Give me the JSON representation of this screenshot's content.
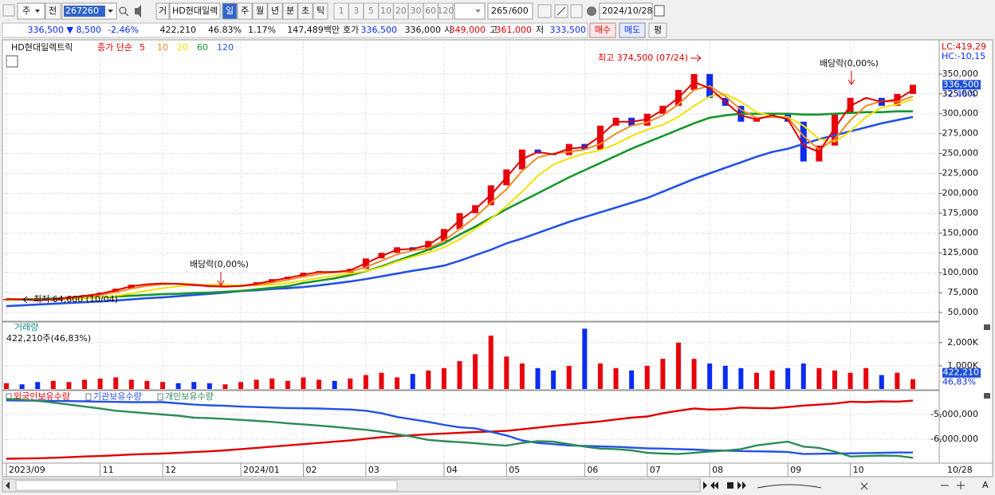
{
  "toolbar": {
    "market": "주",
    "scope": "전",
    "code": "267260",
    "tag": "거",
    "name": "HD현대일렉",
    "periods": [
      "일",
      "주",
      "월",
      "년",
      "분",
      "초",
      "틱"
    ],
    "intervals": [
      "1",
      "3",
      "5",
      "10",
      "20",
      "30",
      "60",
      "120"
    ],
    "count": "265",
    "max": "/600",
    "date": "2024/10/28"
  },
  "info_bar": {
    "price": "336,500 ▼",
    "change": "8,500",
    "change_pct": "-2.46%",
    "volume": "422,210",
    "volume_ratio": "46.83%",
    "turnover_pct": "1.17%",
    "amount": "147,489백만",
    "ask_label": "호가",
    "ask": "336,500",
    "bid": "336,000",
    "open_label": "시",
    "open": "349,000",
    "high_label": "고",
    "high": "361,000",
    "low_label": "저",
    "low": "333,500",
    "buy": "매수",
    "sell": "매도",
    "avg": "평"
  },
  "chart_data": [
    {
      "type": "candlestick",
      "title": "HD현대일렉트릭",
      "legend_title": "종가 단순",
      "up_color": "#e8000b",
      "down_color": "#0a2cf0",
      "close": [
        67000,
        66000,
        64600,
        68000,
        70000,
        72000,
        75000,
        80000,
        85000,
        86000,
        87000,
        85000,
        84000,
        82000,
        83000,
        84000,
        88000,
        92000,
        95000,
        100000,
        102000,
        100000,
        105000,
        118000,
        125000,
        132000,
        128000,
        140000,
        155000,
        175000,
        185000,
        210000,
        230000,
        255000,
        250000,
        248000,
        262000,
        255000,
        285000,
        295000,
        285000,
        300000,
        310000,
        330000,
        350000,
        320000,
        310000,
        290000,
        295000,
        300000,
        290000,
        240000,
        260000,
        300000,
        320000,
        320000,
        310000,
        325000,
        336500
      ],
      "series": [
        {
          "name": "5",
          "color": "#e00000",
          "values": [
            67000,
            66500,
            65500,
            66500,
            69000,
            71000,
            73500,
            78000,
            83000,
            85500,
            86500,
            86000,
            84500,
            83000,
            82500,
            83500,
            86000,
            90000,
            93500,
            97500,
            101000,
            101000,
            103000,
            112000,
            121000,
            129000,
            130000,
            135000,
            148000,
            166000,
            180000,
            198000,
            220000,
            243000,
            252000,
            249000,
            256000,
            258000,
            272000,
            290000,
            290000,
            293000,
            305000,
            320000,
            340000,
            332000,
            315000,
            298000,
            293000,
            298000,
            293000,
            260000,
            252000,
            282000,
            310000,
            320000,
            315000,
            318000,
            330000
          ]
        },
        {
          "name": "10",
          "color": "#f08a24",
          "values": [
            67000,
            66800,
            66000,
            66200,
            67500,
            69500,
            72000,
            75500,
            80000,
            83500,
            85500,
            86200,
            85500,
            84000,
            83000,
            83000,
            84500,
            87500,
            91000,
            95000,
            98500,
            100500,
            101500,
            107000,
            115000,
            123000,
            128000,
            131000,
            140000,
            155000,
            170000,
            188000,
            205000,
            228000,
            245000,
            250000,
            252000,
            255000,
            262000,
            275000,
            285000,
            289000,
            298000,
            312000,
            330000,
            335000,
            322000,
            305000,
            295000,
            296000,
            295000,
            272000,
            255000,
            268000,
            292000,
            310000,
            316000,
            315000,
            322000
          ]
        },
        {
          "name": "20",
          "color": "#f2e200",
          "values": [
            66500,
            66500,
            66300,
            66000,
            66500,
            67500,
            69000,
            71000,
            74000,
            77500,
            80500,
            83000,
            84500,
            85000,
            84500,
            84000,
            84000,
            85000,
            87000,
            90000,
            93500,
            96500,
            99000,
            102000,
            107000,
            114000,
            120000,
            125000,
            132000,
            142000,
            155000,
            168000,
            184000,
            202000,
            222000,
            236000,
            244000,
            250000,
            254000,
            262000,
            272000,
            280000,
            286000,
            296000,
            310000,
            322000,
            325000,
            315000,
            302000,
            297000,
            296000,
            285000,
            268000,
            265000,
            278000,
            296000,
            308000,
            312000,
            318000
          ]
        },
        {
          "name": "60",
          "color": "#17962a",
          "values": [
            66000,
            66500,
            67000,
            67500,
            68000,
            68500,
            69000,
            70000,
            71000,
            72000,
            73000,
            73500,
            74500,
            75000,
            76000,
            77000,
            79000,
            81000,
            83000,
            87000,
            90000,
            93000,
            97000,
            102000,
            108000,
            115000,
            122000,
            129000,
            137000,
            148000,
            158000,
            169000,
            180000,
            190000,
            200000,
            210000,
            220000,
            229000,
            238000,
            247000,
            256000,
            264000,
            272000,
            280000,
            288000,
            295000,
            298000,
            300000,
            300000,
            300000,
            300000,
            299000,
            299000,
            300000,
            301000,
            302000,
            302000,
            303000,
            303000
          ]
        },
        {
          "name": "120",
          "color": "#2452e6",
          "values": [
            58000,
            59000,
            60000,
            61000,
            62000,
            63000,
            64000,
            65000,
            66500,
            68000,
            69000,
            70500,
            72000,
            73500,
            75000,
            77000,
            78000,
            79500,
            80500,
            82000,
            84000,
            86500,
            89000,
            92000,
            95500,
            99000,
            102500,
            105500,
            109000,
            115000,
            122000,
            129000,
            137000,
            143000,
            150000,
            157000,
            164000,
            170000,
            176000,
            182000,
            188000,
            194000,
            202000,
            210000,
            218000,
            225000,
            232000,
            239000,
            246000,
            252000,
            256000,
            262000,
            268000,
            273000,
            278000,
            283000,
            288000,
            292000,
            296000
          ]
        }
      ],
      "ylim": [
        40000,
        391000
      ],
      "yticks": [
        {
          "value": 50000,
          "label": "50,000"
        },
        {
          "value": 75000,
          "label": "75,000"
        },
        {
          "value": 100000,
          "label": "100,000"
        },
        {
          "value": 125000,
          "label": "125,000"
        },
        {
          "value": 150000,
          "label": "150,000"
        },
        {
          "value": 175000,
          "label": "175,000"
        },
        {
          "value": 200000,
          "label": "200,000"
        },
        {
          "value": 225000,
          "label": "225,000"
        },
        {
          "value": 250000,
          "label": "250,000"
        },
        {
          "value": 275000,
          "label": "275,000"
        },
        {
          "value": 300000,
          "label": "300,000"
        },
        {
          "value": 325000,
          "label": "325,000"
        },
        {
          "value": 350000,
          "label": "350,000"
        }
      ],
      "grid": true,
      "current_label": "336,500",
      "change_label": "-2.46%",
      "lc_label": "LC:419,29",
      "hc_label": "HC:-10,15",
      "annotations": [
        "최고 374,500 (07/24)",
        "최저 64,600 (10/04)",
        "배당락(0,00%)",
        "배당락(0,00%)"
      ]
    },
    {
      "type": "bar",
      "title": "거래량",
      "subtitle": "422,210주(46,83%)",
      "up_color": "#e8000b",
      "down_color": "#0a2cf0",
      "values": [
        250000,
        200000,
        300000,
        350000,
        300000,
        400000,
        450000,
        500000,
        400000,
        350000,
        300000,
        250000,
        300000,
        250000,
        200000,
        300000,
        400000,
        450000,
        350000,
        500000,
        400000,
        350000,
        450000,
        600000,
        700000,
        500000,
        650000,
        800000,
        900000,
        1200000,
        1500000,
        2300000,
        1400000,
        1100000,
        900000,
        800000,
        1000000,
        2600000,
        1100000,
        900000,
        800000,
        1000000,
        1300000,
        2000000,
        1300000,
        1100000,
        1000000,
        900000,
        700000,
        800000,
        900000,
        1100000,
        900000,
        800000,
        700000,
        900000,
        600000,
        700000,
        422210
      ],
      "ylim": [
        0,
        2750000
      ],
      "yticks": [
        {
          "value": 1000000,
          "label": "1,000K"
        },
        {
          "value": 2000000,
          "label": "2,000K"
        }
      ],
      "grid": true,
      "last_label": "422,210",
      "ratio_label": "46,83%"
    },
    {
      "type": "line",
      "categories": [
        "2023/09",
        null,
        null,
        null,
        null,
        null,
        "11",
        null,
        null,
        null,
        "12",
        null,
        null,
        null,
        null,
        "2024/01",
        null,
        null,
        null,
        "02",
        null,
        null,
        null,
        "03",
        null,
        null,
        null,
        null,
        "04",
        null,
        null,
        null,
        "05",
        null,
        null,
        null,
        null,
        "06",
        null,
        null,
        null,
        "07",
        null,
        null,
        null,
        "08",
        null,
        null,
        null,
        null,
        "09",
        null,
        null,
        null,
        "10",
        null,
        null,
        null,
        null
      ],
      "end_label": "10/28",
      "series": [
        {
          "name": "외국인보유수량",
          "color": "#e00000",
          "values": [
            -6790000,
            -6780000,
            -6770000,
            -6750000,
            -6730000,
            -6700000,
            -6680000,
            -6650000,
            -6620000,
            -6600000,
            -6580000,
            -6550000,
            -6520000,
            -6490000,
            -6450000,
            -6400000,
            -6350000,
            -6300000,
            -6250000,
            -6200000,
            -6150000,
            -6100000,
            -6050000,
            -5980000,
            -5920000,
            -5880000,
            -5840000,
            -5800000,
            -5770000,
            -5740000,
            -5710000,
            -5690000,
            -5660000,
            -5600000,
            -5530000,
            -5460000,
            -5400000,
            -5340000,
            -5280000,
            -5200000,
            -5130000,
            -5080000,
            -4950000,
            -4850000,
            -4760000,
            -4800000,
            -4780000,
            -4720000,
            -4740000,
            -4750000,
            -4700000,
            -4640000,
            -4600000,
            -4560000,
            -4480000,
            -4500000,
            -4470000,
            -4480000,
            -4440000
          ]
        },
        {
          "name": "기관보유수량",
          "color": "#2452e6",
          "values": [
            -4430000,
            -4440000,
            -4440000,
            -4450000,
            -4460000,
            -4470000,
            -4480000,
            -4490000,
            -4500000,
            -4500000,
            -4500000,
            -4550000,
            -4600000,
            -4630000,
            -4650000,
            -4680000,
            -4700000,
            -4720000,
            -4740000,
            -4750000,
            -4760000,
            -4780000,
            -4800000,
            -4850000,
            -4950000,
            -5100000,
            -5200000,
            -5300000,
            -5420000,
            -5520000,
            -5560000,
            -5700000,
            -5850000,
            -6050000,
            -6150000,
            -6200000,
            -6250000,
            -6270000,
            -6290000,
            -6310000,
            -6340000,
            -6370000,
            -6380000,
            -6400000,
            -6420000,
            -6450000,
            -6460000,
            -6480000,
            -6490000,
            -6500000,
            -6520000,
            -6600000,
            -6590000,
            -6580000,
            -6570000,
            -6560000,
            -6550000,
            -6540000,
            -6540000
          ]
        },
        {
          "name": "개인보유수량",
          "color": "#2e8b57",
          "values": [
            -4370000,
            -4400000,
            -4450000,
            -4520000,
            -4600000,
            -4680000,
            -4760000,
            -4850000,
            -4900000,
            -4950000,
            -5000000,
            -5050000,
            -5130000,
            -5150000,
            -5180000,
            -5220000,
            -5260000,
            -5300000,
            -5360000,
            -5400000,
            -5450000,
            -5500000,
            -5560000,
            -5620000,
            -5700000,
            -5800000,
            -5900000,
            -6030000,
            -6080000,
            -6120000,
            -6160000,
            -6220000,
            -6260000,
            -6150000,
            -6080000,
            -6100000,
            -6200000,
            -6300000,
            -6380000,
            -6400000,
            -6450000,
            -6550000,
            -6580000,
            -6600000,
            -6550000,
            -6500000,
            -6460000,
            -6400000,
            -6250000,
            -6170000,
            -6100000,
            -6300000,
            -6350000,
            -6500000,
            -6700000,
            -6680000,
            -6660000,
            -6670000,
            -6750000
          ]
        }
      ],
      "ylim": [
        -6935000,
        -4130000
      ],
      "yticks": [
        {
          "value": -5000000,
          "label": "-5,000,000"
        },
        {
          "value": -6000000,
          "label": "-6,000,000"
        }
      ],
      "grid": true
    }
  ]
}
